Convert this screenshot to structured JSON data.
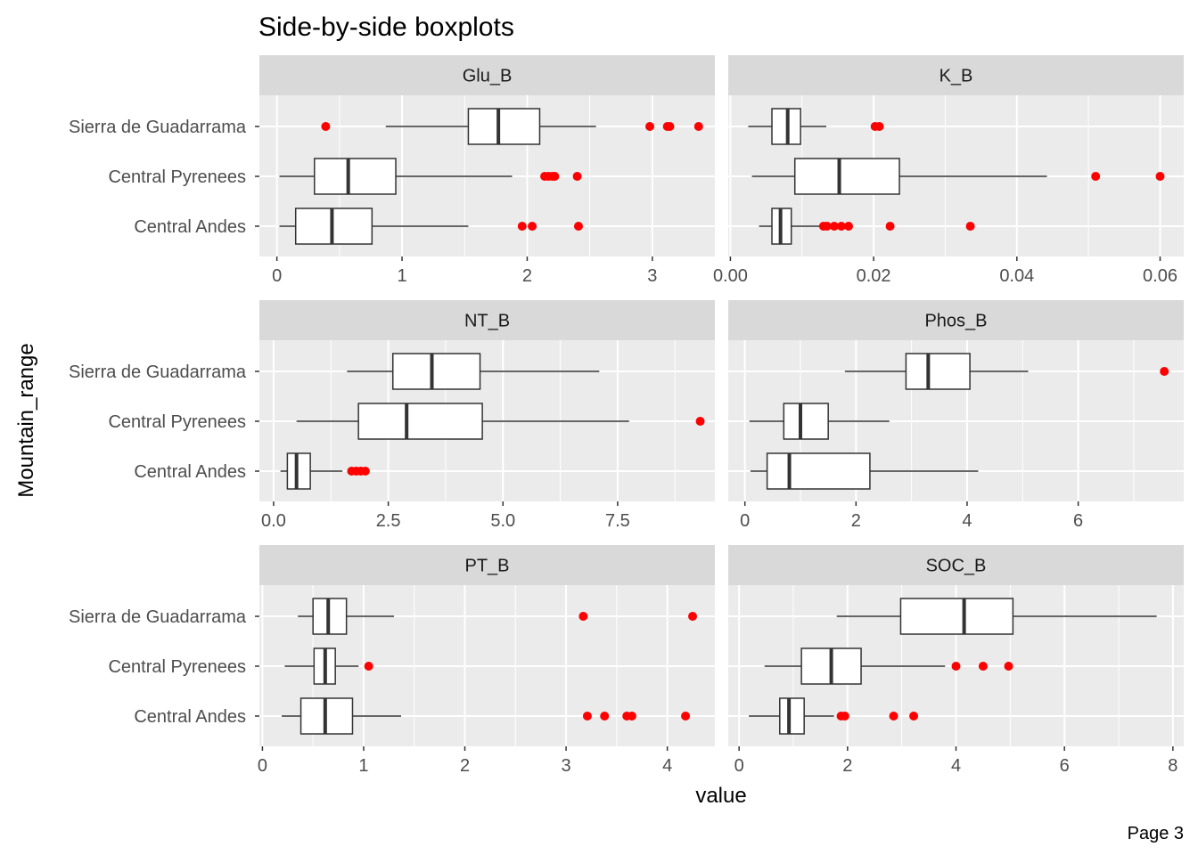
{
  "chart_data": {
    "type": "boxplot",
    "title": "Side-by-side boxplots",
    "xlabel": "value",
    "ylabel": "Mountain_range",
    "caption": "Page 3",
    "categories": [
      "Sierra de Guadarrama",
      "Central Pyrenees",
      "Central Andes"
    ],
    "outlier_color": "#ff0000",
    "panel_background": "#ebebeb",
    "strip_background": "#d9d9d9",
    "grid": true,
    "facets": [
      {
        "name": "Glu_B",
        "xlim": [
          -0.14,
          3.5
        ],
        "xticks": [
          {
            "v": 0,
            "label": "0"
          },
          {
            "v": 1,
            "label": "1"
          },
          {
            "v": 2,
            "label": "2"
          },
          {
            "v": 3,
            "label": "3"
          }
        ],
        "boxes": [
          {
            "category": "Sierra de Guadarrama",
            "min": 0.87,
            "q1": 1.53,
            "median": 1.77,
            "q3": 2.1,
            "max": 2.55,
            "outliers": [
              0.39,
              2.98,
              3.12,
              3.14,
              3.37
            ]
          },
          {
            "category": "Central Pyrenees",
            "min": 0.02,
            "q1": 0.3,
            "median": 0.57,
            "q3": 0.95,
            "max": 1.88,
            "outliers": [
              2.14,
              2.17,
              2.2,
              2.22,
              2.4
            ]
          },
          {
            "category": "Central Andes",
            "min": 0.02,
            "q1": 0.15,
            "median": 0.44,
            "q3": 0.76,
            "max": 1.53,
            "outliers": [
              1.96,
              2.04,
              2.41
            ]
          }
        ]
      },
      {
        "name": "K_B",
        "xlim": [
          -0.0003,
          0.0633
        ],
        "xticks": [
          {
            "v": 0.0,
            "label": "0.00"
          },
          {
            "v": 0.02,
            "label": "0.02"
          },
          {
            "v": 0.04,
            "label": "0.04"
          },
          {
            "v": 0.06,
            "label": "0.06"
          }
        ],
        "boxes": [
          {
            "category": "Sierra de Guadarrama",
            "min": 0.0025,
            "q1": 0.0058,
            "median": 0.008,
            "q3": 0.0098,
            "max": 0.0134,
            "outliers": [
              0.0202,
              0.0208
            ]
          },
          {
            "category": "Central Pyrenees",
            "min": 0.003,
            "q1": 0.009,
            "median": 0.0152,
            "q3": 0.0236,
            "max": 0.0442,
            "outliers": [
              0.051,
              0.06
            ]
          },
          {
            "category": "Central Andes",
            "min": 0.004,
            "q1": 0.0058,
            "median": 0.007,
            "q3": 0.0085,
            "max": 0.0128,
            "outliers": [
              0.013,
              0.0135,
              0.0145,
              0.0155,
              0.0165,
              0.0223,
              0.0335
            ]
          }
        ]
      },
      {
        "name": "NT_B",
        "xlim": [
          -0.31,
          9.62
        ],
        "xticks": [
          {
            "v": 0.0,
            "label": "0.0"
          },
          {
            "v": 2.5,
            "label": "2.5"
          },
          {
            "v": 5.0,
            "label": "5.0"
          },
          {
            "v": 7.5,
            "label": "7.5"
          }
        ],
        "boxes": [
          {
            "category": "Sierra de Guadarrama",
            "min": 1.6,
            "q1": 2.6,
            "median": 3.45,
            "q3": 4.5,
            "max": 7.1,
            "outliers": []
          },
          {
            "category": "Central Pyrenees",
            "min": 0.5,
            "q1": 1.85,
            "median": 2.9,
            "q3": 4.55,
            "max": 7.75,
            "outliers": [
              9.3
            ]
          },
          {
            "category": "Central Andes",
            "min": 0.15,
            "q1": 0.3,
            "median": 0.5,
            "q3": 0.8,
            "max": 1.5,
            "outliers": [
              1.7,
              1.8,
              1.9,
              2.0
            ]
          }
        ]
      },
      {
        "name": "Phos_B",
        "xlim": [
          -0.3,
          7.9
        ],
        "xticks": [
          {
            "v": 0,
            "label": "0"
          },
          {
            "v": 2,
            "label": "2"
          },
          {
            "v": 4,
            "label": "4"
          },
          {
            "v": 6,
            "label": "6"
          }
        ],
        "boxes": [
          {
            "category": "Sierra de Guadarrama",
            "min": 1.8,
            "q1": 2.9,
            "median": 3.3,
            "q3": 4.05,
            "max": 5.1,
            "outliers": [
              7.55
            ]
          },
          {
            "category": "Central Pyrenees",
            "min": 0.08,
            "q1": 0.7,
            "median": 1.0,
            "q3": 1.5,
            "max": 2.6,
            "outliers": []
          },
          {
            "category": "Central Andes",
            "min": 0.1,
            "q1": 0.4,
            "median": 0.8,
            "q3": 2.25,
            "max": 4.2,
            "outliers": []
          }
        ]
      },
      {
        "name": "PT_B",
        "xlim": [
          -0.03,
          4.47
        ],
        "xticks": [
          {
            "v": 0,
            "label": "0"
          },
          {
            "v": 1,
            "label": "1"
          },
          {
            "v": 2,
            "label": "2"
          },
          {
            "v": 3,
            "label": "3"
          },
          {
            "v": 4,
            "label": "4"
          }
        ],
        "boxes": [
          {
            "category": "Sierra de Guadarrama",
            "min": 0.35,
            "q1": 0.5,
            "median": 0.65,
            "q3": 0.83,
            "max": 1.3,
            "outliers": [
              3.17,
              4.25
            ]
          },
          {
            "category": "Central Pyrenees",
            "min": 0.22,
            "q1": 0.51,
            "median": 0.62,
            "q3": 0.72,
            "max": 0.95,
            "outliers": [
              1.05
            ]
          },
          {
            "category": "Central Andes",
            "min": 0.19,
            "q1": 0.38,
            "median": 0.62,
            "q3": 0.89,
            "max": 1.37,
            "outliers": [
              3.21,
              3.38,
              3.6,
              3.65,
              4.18
            ]
          }
        ]
      },
      {
        "name": "SOC_B",
        "xlim": [
          -0.2,
          8.2
        ],
        "xticks": [
          {
            "v": 0,
            "label": "0"
          },
          {
            "v": 2,
            "label": "2"
          },
          {
            "v": 4,
            "label": "4"
          },
          {
            "v": 6,
            "label": "6"
          },
          {
            "v": 8,
            "label": "8"
          }
        ],
        "boxes": [
          {
            "category": "Sierra de Guadarrama",
            "min": 1.8,
            "q1": 2.98,
            "median": 4.15,
            "q3": 5.05,
            "max": 7.7,
            "outliers": []
          },
          {
            "category": "Central Pyrenees",
            "min": 0.47,
            "q1": 1.15,
            "median": 1.7,
            "q3": 2.25,
            "max": 3.8,
            "outliers": [
              4.0,
              4.5,
              4.97
            ]
          },
          {
            "category": "Central Andes",
            "min": 0.18,
            "q1": 0.75,
            "median": 0.92,
            "q3": 1.2,
            "max": 1.75,
            "outliers": [
              1.88,
              1.95,
              2.85,
              3.22
            ]
          }
        ]
      }
    ]
  }
}
